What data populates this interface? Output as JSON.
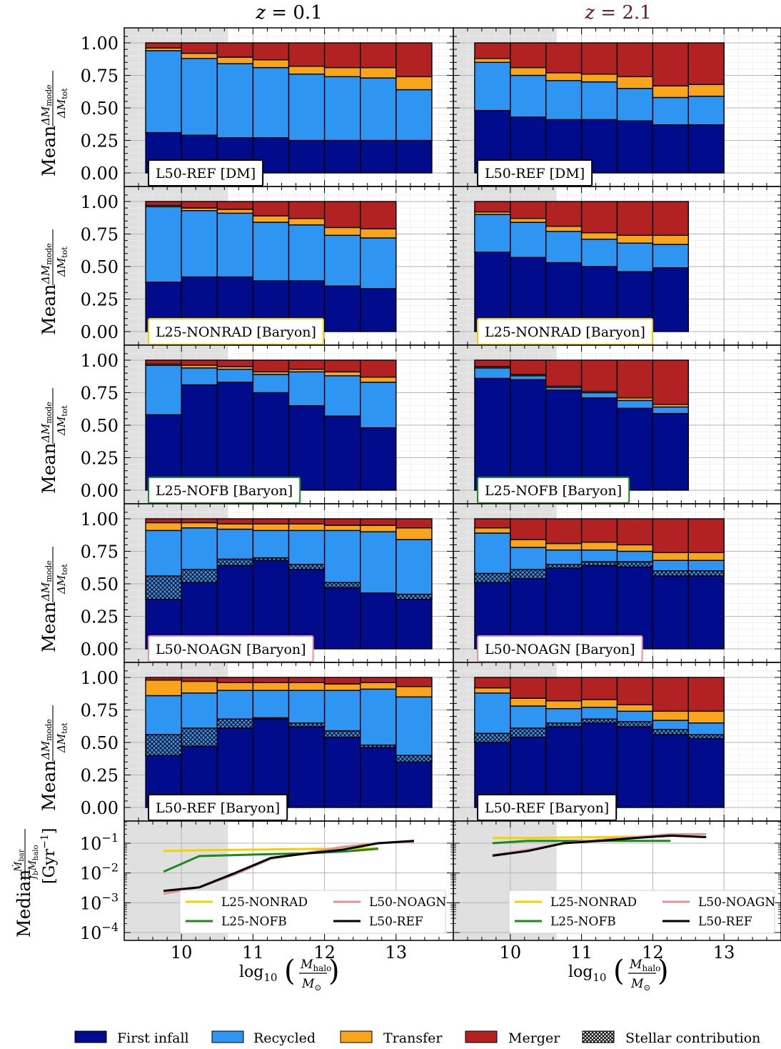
{
  "figure": {
    "col_titles": [
      {
        "prefix": "z",
        "eq": " = 0.1",
        "color": "#000000"
      },
      {
        "prefix": "z",
        "eq": " = 2.1",
        "color": "#6b1d1d"
      }
    ],
    "ylabel_prefix": "Mean",
    "ylabel_frac_num": "ΔM",
    "ylabel_frac_num_sub": "mode",
    "ylabel_frac_den": "ΔM",
    "ylabel_frac_den_sub": "tot",
    "bottom_ylabel_prefix": "Median",
    "bottom_ylabel_num": "Ṁ",
    "bottom_ylabel_num_sub": "bar",
    "bottom_ylabel_den": "f",
    "bottom_ylabel_den_sub": "b",
    "bottom_ylabel_den2": "M",
    "bottom_ylabel_den2_sub": "halo",
    "bottom_ylabel_unit": "[Gyr",
    "bottom_ylabel_unit_sup": "−1",
    "bottom_ylabel_unit_close": "]",
    "xlabel_log": "log",
    "xlabel_log_sub": "10",
    "xlabel_num": "M",
    "xlabel_num_sub": "halo",
    "xlabel_den": "M",
    "xlabel_den_sub": "⊙",
    "x_tick_labels": [
      "10",
      "11",
      "12",
      "13"
    ],
    "y_tick_labels": [
      "0.00",
      "0.25",
      "0.50",
      "0.75",
      "1.00"
    ],
    "log_tick_labels": [
      {
        "base": "10",
        "exp": "−1"
      },
      {
        "base": "10",
        "exp": "−2"
      },
      {
        "base": "10",
        "exp": "−3"
      },
      {
        "base": "10",
        "exp": "−4"
      }
    ]
  },
  "colors": {
    "first_infall": "#000c8c",
    "recycled": "#2f95f2",
    "transfer": "#f9a51b",
    "merger": "#b22222",
    "shade": "#e0e0e0",
    "nonrad": "#f5d000",
    "nofb": "#1a8a1a",
    "noagn": "#e39393",
    "ref": "#000000"
  },
  "legend": {
    "modes": [
      "First infall",
      "Recycled",
      "Transfer",
      "Merger",
      "Stellar contribution"
    ],
    "lines": [
      "L25-NONRAD",
      "L25-NOFB",
      "L50-NOAGN",
      "L50-REF"
    ]
  },
  "chart_data": [
    {
      "type": "bar",
      "stacked": true,
      "panel": "L50-REF [DM]",
      "redshift": "z = 0.1",
      "box_color": "#000000",
      "bin_centers": [
        9.75,
        10.25,
        10.75,
        11.25,
        11.75,
        12.25,
        12.75,
        13.25
      ],
      "first_infall": [
        0.31,
        0.29,
        0.27,
        0.27,
        0.25,
        0.25,
        0.25,
        0.25
      ],
      "recycled": [
        0.63,
        0.59,
        0.57,
        0.54,
        0.51,
        0.49,
        0.48,
        0.39
      ],
      "transfer": [
        0.02,
        0.04,
        0.05,
        0.06,
        0.06,
        0.07,
        0.08,
        0.1
      ],
      "merger": [
        0.04,
        0.08,
        0.11,
        0.13,
        0.18,
        0.19,
        0.19,
        0.26
      ],
      "stellar": [
        0,
        0,
        0,
        0,
        0,
        0,
        0,
        0
      ],
      "ylim": [
        0,
        1
      ],
      "xlim": [
        9.2,
        13.8
      ],
      "shade_below": 10.65
    },
    {
      "type": "bar",
      "stacked": true,
      "panel": "L50-REF [DM]",
      "redshift": "z = 2.1",
      "box_color": "#000000",
      "bin_centers": [
        9.75,
        10.25,
        10.75,
        11.25,
        11.75,
        12.25,
        12.75
      ],
      "first_infall": [
        0.48,
        0.43,
        0.41,
        0.41,
        0.4,
        0.37,
        0.37
      ],
      "recycled": [
        0.37,
        0.32,
        0.3,
        0.29,
        0.25,
        0.21,
        0.22
      ],
      "transfer": [
        0.03,
        0.06,
        0.06,
        0.06,
        0.09,
        0.09,
        0.09
      ],
      "merger": [
        0.12,
        0.19,
        0.23,
        0.24,
        0.26,
        0.33,
        0.32
      ],
      "stellar": [
        0,
        0,
        0,
        0,
        0,
        0,
        0
      ],
      "ylim": [
        0,
        1
      ],
      "xlim": [
        9.2,
        13.8
      ],
      "shade_below": 10.65
    },
    {
      "type": "bar",
      "stacked": true,
      "panel": "L25-NONRAD [Baryon]",
      "redshift": "z = 0.1",
      "box_color": "#f5d000",
      "bin_centers": [
        9.75,
        10.25,
        10.75,
        11.25,
        11.75,
        12.25,
        12.75
      ],
      "first_infall": [
        0.38,
        0.42,
        0.42,
        0.39,
        0.39,
        0.35,
        0.33
      ],
      "recycled": [
        0.58,
        0.51,
        0.49,
        0.45,
        0.43,
        0.39,
        0.39
      ],
      "transfer": [
        0.01,
        0.02,
        0.03,
        0.05,
        0.05,
        0.06,
        0.07
      ],
      "merger": [
        0.03,
        0.05,
        0.06,
        0.11,
        0.13,
        0.2,
        0.21
      ],
      "stellar": [
        0,
        0,
        0,
        0,
        0,
        0,
        0
      ],
      "ylim": [
        0,
        1
      ],
      "xlim": [
        9.2,
        13.8
      ],
      "shade_below": 10.65
    },
    {
      "type": "bar",
      "stacked": true,
      "panel": "L25-NONRAD [Baryon]",
      "redshift": "z = 2.1",
      "box_color": "#f5d000",
      "bin_centers": [
        9.75,
        10.25,
        10.75,
        11.25,
        11.75,
        12.25
      ],
      "first_infall": [
        0.61,
        0.57,
        0.53,
        0.5,
        0.46,
        0.49
      ],
      "recycled": [
        0.29,
        0.27,
        0.24,
        0.21,
        0.22,
        0.18
      ],
      "transfer": [
        0.02,
        0.03,
        0.04,
        0.05,
        0.06,
        0.07
      ],
      "merger": [
        0.08,
        0.13,
        0.19,
        0.24,
        0.26,
        0.26
      ],
      "stellar": [
        0,
        0,
        0,
        0,
        0,
        0
      ],
      "ylim": [
        0,
        1
      ],
      "xlim": [
        9.2,
        13.8
      ],
      "shade_below": 10.65
    },
    {
      "type": "bar",
      "stacked": true,
      "panel": "L25-NOFB [Baryon]",
      "redshift": "z = 0.1",
      "box_color": "#1a8a1a",
      "bin_centers": [
        9.75,
        10.25,
        10.75,
        11.25,
        11.75,
        12.25,
        12.75
      ],
      "first_infall": [
        0.58,
        0.81,
        0.83,
        0.75,
        0.65,
        0.57,
        0.48
      ],
      "recycled": [
        0.38,
        0.13,
        0.1,
        0.14,
        0.26,
        0.31,
        0.35
      ],
      "transfer": [
        0.01,
        0.02,
        0.02,
        0.02,
        0.02,
        0.03,
        0.04
      ],
      "merger": [
        0.03,
        0.04,
        0.05,
        0.09,
        0.07,
        0.09,
        0.13
      ],
      "stellar": [
        0,
        0,
        0,
        0,
        0,
        0,
        0
      ],
      "ylim": [
        0,
        1
      ],
      "xlim": [
        9.2,
        13.8
      ],
      "shade_below": 10.65
    },
    {
      "type": "bar",
      "stacked": true,
      "panel": "L25-NOFB [Baryon]",
      "redshift": "z = 2.1",
      "box_color": "#1a8a1a",
      "bin_centers": [
        9.75,
        10.25,
        10.75,
        11.25,
        11.75,
        12.25
      ],
      "first_infall": [
        0.86,
        0.85,
        0.77,
        0.71,
        0.63,
        0.59
      ],
      "recycled": [
        0.08,
        0.03,
        0.02,
        0.04,
        0.06,
        0.05
      ],
      "transfer": [
        0.01,
        0.01,
        0.01,
        0.01,
        0.02,
        0.02
      ],
      "merger": [
        0.05,
        0.11,
        0.2,
        0.24,
        0.29,
        0.34
      ],
      "stellar": [
        0,
        0,
        0,
        0,
        0,
        0
      ],
      "ylim": [
        0,
        1
      ],
      "xlim": [
        9.2,
        13.8
      ],
      "shade_below": 10.65
    },
    {
      "type": "bar",
      "stacked": true,
      "panel": "L50-NOAGN [Baryon]",
      "redshift": "z = 0.1",
      "box_color": "#e39393",
      "bin_centers": [
        9.75,
        10.25,
        10.75,
        11.25,
        11.75,
        12.25,
        12.75,
        13.25
      ],
      "first_infall": [
        0.38,
        0.51,
        0.64,
        0.68,
        0.61,
        0.47,
        0.43,
        0.38
      ],
      "recycled": [
        0.35,
        0.32,
        0.23,
        0.21,
        0.26,
        0.4,
        0.47,
        0.42
      ],
      "transfer": [
        0.06,
        0.04,
        0.04,
        0.05,
        0.05,
        0.04,
        0.05,
        0.09
      ],
      "merger": [
        0.03,
        0.03,
        0.04,
        0.04,
        0.04,
        0.05,
        0.05,
        0.07
      ],
      "stellar": [
        0.18,
        0.1,
        0.05,
        0.02,
        0.04,
        0.04,
        0.0,
        0.04
      ],
      "ylim": [
        0,
        1
      ],
      "xlim": [
        9.2,
        13.8
      ],
      "shade_below": 10.65
    },
    {
      "type": "bar",
      "stacked": true,
      "panel": "L50-NOAGN [Baryon]",
      "redshift": "z = 2.1",
      "box_color": "#e39393",
      "bin_centers": [
        9.75,
        10.25,
        10.75,
        11.25,
        11.75,
        12.25,
        12.75
      ],
      "first_infall": [
        0.51,
        0.54,
        0.62,
        0.64,
        0.63,
        0.56,
        0.56
      ],
      "recycled": [
        0.31,
        0.17,
        0.11,
        0.09,
        0.08,
        0.08,
        0.08
      ],
      "transfer": [
        0.04,
        0.06,
        0.05,
        0.06,
        0.05,
        0.06,
        0.06
      ],
      "merger": [
        0.07,
        0.16,
        0.19,
        0.18,
        0.2,
        0.26,
        0.26
      ],
      "stellar": [
        0.07,
        0.07,
        0.03,
        0.03,
        0.04,
        0.04,
        0.04
      ],
      "ylim": [
        0,
        1
      ],
      "xlim": [
        9.2,
        13.8
      ],
      "shade_below": 10.65
    },
    {
      "type": "bar",
      "stacked": true,
      "panel": "L50-REF [Baryon]",
      "redshift": "z = 0.1",
      "box_color": "#000000",
      "bin_centers": [
        9.75,
        10.25,
        10.75,
        11.25,
        11.75,
        12.25,
        12.75,
        13.25
      ],
      "first_infall": [
        0.4,
        0.47,
        0.61,
        0.68,
        0.62,
        0.54,
        0.46,
        0.35
      ],
      "recycled": [
        0.3,
        0.27,
        0.22,
        0.21,
        0.25,
        0.31,
        0.43,
        0.45
      ],
      "transfer": [
        0.12,
        0.09,
        0.06,
        0.06,
        0.06,
        0.05,
        0.05,
        0.08
      ],
      "merger": [
        0.02,
        0.03,
        0.04,
        0.04,
        0.04,
        0.05,
        0.04,
        0.07
      ],
      "stellar": [
        0.16,
        0.14,
        0.07,
        0.01,
        0.03,
        0.05,
        0.02,
        0.05
      ],
      "ylim": [
        0,
        1
      ],
      "xlim": [
        9.2,
        13.8
      ],
      "shade_below": 10.65
    },
    {
      "type": "bar",
      "stacked": true,
      "panel": "L50-REF [Baryon]",
      "redshift": "z = 2.1",
      "box_color": "#000000",
      "bin_centers": [
        9.75,
        10.25,
        10.75,
        11.25,
        11.75,
        12.25,
        12.75
      ],
      "first_infall": [
        0.5,
        0.54,
        0.62,
        0.65,
        0.62,
        0.56,
        0.53
      ],
      "recycled": [
        0.31,
        0.17,
        0.11,
        0.09,
        0.08,
        0.07,
        0.09
      ],
      "transfer": [
        0.04,
        0.06,
        0.06,
        0.06,
        0.05,
        0.07,
        0.09
      ],
      "merger": [
        0.08,
        0.16,
        0.18,
        0.17,
        0.21,
        0.26,
        0.26
      ],
      "stellar": [
        0.07,
        0.07,
        0.03,
        0.03,
        0.04,
        0.04,
        0.03
      ],
      "ylim": [
        0,
        1
      ],
      "xlim": [
        9.2,
        13.8
      ],
      "shade_below": 10.65
    },
    {
      "type": "line",
      "yscale": "log",
      "redshift": "z = 0.1",
      "ylim": [
        5e-05,
        0.5
      ],
      "xlim": [
        9.2,
        13.8
      ],
      "shade_below": 10.65,
      "legend_position": "lower right",
      "series": [
        {
          "name": "L25-NONRAD",
          "x": [
            9.75,
            10.25,
            10.75,
            11.25,
            11.75,
            12.25,
            12.75
          ],
          "y": [
            0.055,
            0.058,
            0.06,
            0.062,
            0.064,
            0.066,
            0.068
          ]
        },
        {
          "name": "L25-NOFB",
          "x": [
            9.75,
            10.25,
            10.75,
            11.25,
            11.75,
            12.25,
            12.75
          ],
          "y": [
            0.011,
            0.037,
            0.04,
            0.043,
            0.046,
            0.052,
            0.065
          ]
        },
        {
          "name": "L50-NOAGN",
          "x": [
            9.75,
            10.25,
            10.75,
            11.25,
            11.75,
            12.25,
            12.75,
            13.25
          ],
          "y": [
            0.002,
            0.0033,
            0.009,
            0.03,
            0.047,
            0.075,
            0.1,
            0.11
          ]
        },
        {
          "name": "L50-REF",
          "x": [
            9.75,
            10.25,
            10.75,
            11.25,
            11.75,
            12.25,
            12.75,
            13.25
          ],
          "y": [
            0.0025,
            0.0033,
            0.01,
            0.032,
            0.045,
            0.06,
            0.1,
            0.12
          ]
        }
      ]
    },
    {
      "type": "line",
      "yscale": "log",
      "redshift": "z = 2.1",
      "ylim": [
        5e-05,
        0.5
      ],
      "xlim": [
        9.2,
        13.8
      ],
      "shade_below": 10.65,
      "legend_position": "lower right",
      "series": [
        {
          "name": "L25-NONRAD",
          "x": [
            9.75,
            10.25,
            10.75,
            11.25,
            11.75,
            12.25
          ],
          "y": [
            0.15,
            0.15,
            0.155,
            0.16,
            0.165,
            0.17
          ]
        },
        {
          "name": "L25-NOFB",
          "x": [
            9.75,
            10.25,
            10.75,
            11.25,
            11.75,
            12.25
          ],
          "y": [
            0.1,
            0.12,
            0.12,
            0.12,
            0.12,
            0.12
          ]
        },
        {
          "name": "L50-NOAGN",
          "x": [
            9.75,
            10.25,
            10.75,
            11.25,
            11.75,
            12.25,
            12.75
          ],
          "y": [
            0.04,
            0.06,
            0.1,
            0.13,
            0.16,
            0.2,
            0.2
          ]
        },
        {
          "name": "L50-REF",
          "x": [
            9.75,
            10.25,
            10.75,
            11.25,
            11.75,
            12.25,
            12.75
          ],
          "y": [
            0.038,
            0.055,
            0.1,
            0.12,
            0.15,
            0.18,
            0.16
          ]
        }
      ]
    }
  ]
}
